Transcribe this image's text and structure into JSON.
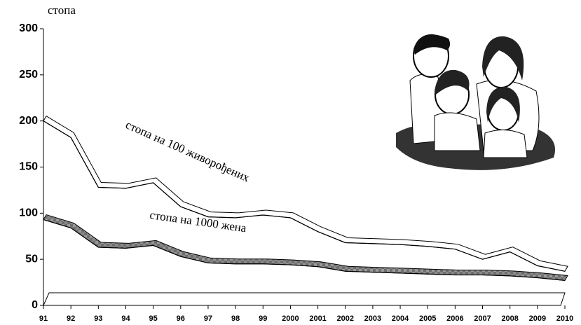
{
  "chart_data": {
    "type": "line",
    "y_label": "стопа",
    "categories": [
      "91",
      "92",
      "93",
      "94",
      "95",
      "96",
      "97",
      "98",
      "99",
      "2000",
      "2001",
      "2002",
      "2003",
      "2004",
      "2005",
      "2006",
      "2007",
      "2008",
      "2009",
      "2010"
    ],
    "series": [
      {
        "name": "стопа на 100 живорођених",
        "color": "#ffffff",
        "values": [
          200,
          182,
          128,
          127,
          133,
          107,
          96,
          95,
          98,
          95,
          80,
          68,
          67,
          66,
          64,
          61,
          50,
          58,
          43,
          37
        ]
      },
      {
        "name": "стопа на 1000 жена",
        "color": "#808080",
        "values": [
          93,
          84,
          63,
          62,
          65,
          53,
          46,
          45,
          45,
          44,
          42,
          37,
          36,
          35,
          34,
          33,
          33,
          32,
          30,
          27
        ]
      }
    ],
    "ylim": [
      0,
      300
    ],
    "yticks": [
      0,
      50,
      100,
      150,
      200,
      250,
      300
    ]
  }
}
